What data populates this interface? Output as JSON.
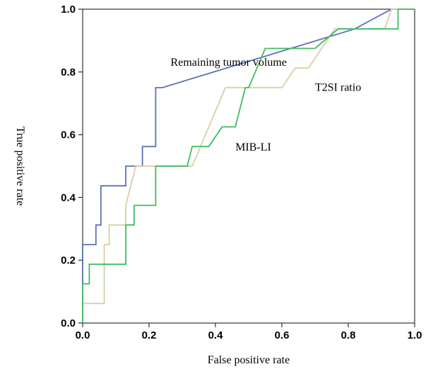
{
  "chart_data": {
    "type": "line",
    "title": "",
    "xlabel": "False positive rate",
    "ylabel": "True positive rate",
    "xlim": [
      0.0,
      1.0
    ],
    "ylim": [
      0.0,
      1.0
    ],
    "xticks": [
      "0.0",
      "0.2",
      "0.4",
      "0.6",
      "0.8",
      "1.0"
    ],
    "yticks": [
      "0.0",
      "0.2",
      "0.4",
      "0.6",
      "0.8",
      "1.0"
    ],
    "grid": false,
    "legend": "none",
    "series": [
      {
        "name": "Remaining tumor volume",
        "color": "#5a70b8",
        "points": [
          [
            0.0,
            0.0
          ],
          [
            0.0,
            0.25
          ],
          [
            0.04,
            0.25
          ],
          [
            0.04,
            0.3125
          ],
          [
            0.055,
            0.3125
          ],
          [
            0.055,
            0.4375
          ],
          [
            0.13,
            0.4375
          ],
          [
            0.13,
            0.5
          ],
          [
            0.18,
            0.5
          ],
          [
            0.18,
            0.5625
          ],
          [
            0.22,
            0.5625
          ],
          [
            0.22,
            0.75
          ],
          [
            0.24,
            0.75
          ],
          [
            0.82,
            0.9375
          ],
          [
            0.93,
            1.0
          ],
          [
            1.0,
            1.0
          ]
        ]
      },
      {
        "name": "T2SI ratio",
        "color": "#d8cfa2",
        "points": [
          [
            0.0,
            0.0
          ],
          [
            0.0,
            0.0625
          ],
          [
            0.065,
            0.0625
          ],
          [
            0.065,
            0.25
          ],
          [
            0.08,
            0.25
          ],
          [
            0.08,
            0.3125
          ],
          [
            0.13,
            0.3125
          ],
          [
            0.13,
            0.375
          ],
          [
            0.16,
            0.5
          ],
          [
            0.33,
            0.5
          ],
          [
            0.38,
            0.625
          ],
          [
            0.43,
            0.75
          ],
          [
            0.6,
            0.75
          ],
          [
            0.64,
            0.8125
          ],
          [
            0.68,
            0.8125
          ],
          [
            0.72,
            0.875
          ],
          [
            0.76,
            0.9375
          ],
          [
            0.91,
            0.9375
          ],
          [
            0.93,
            1.0
          ],
          [
            1.0,
            1.0
          ]
        ]
      },
      {
        "name": "MIB-LI",
        "color": "#3ebd5e",
        "points": [
          [
            0.0,
            0.0
          ],
          [
            0.0,
            0.125
          ],
          [
            0.02,
            0.125
          ],
          [
            0.02,
            0.1875
          ],
          [
            0.13,
            0.1875
          ],
          [
            0.13,
            0.3125
          ],
          [
            0.155,
            0.3125
          ],
          [
            0.155,
            0.375
          ],
          [
            0.22,
            0.375
          ],
          [
            0.22,
            0.5
          ],
          [
            0.315,
            0.5
          ],
          [
            0.33,
            0.5625
          ],
          [
            0.38,
            0.5625
          ],
          [
            0.42,
            0.625
          ],
          [
            0.46,
            0.625
          ],
          [
            0.49,
            0.75
          ],
          [
            0.5,
            0.75
          ],
          [
            0.55,
            0.875
          ],
          [
            0.7,
            0.875
          ],
          [
            0.77,
            0.9375
          ],
          [
            0.95,
            0.9375
          ],
          [
            0.95,
            1.0
          ],
          [
            1.0,
            1.0
          ]
        ]
      }
    ],
    "annotations": [
      {
        "text": "Remaining tumor volume",
        "x": 0.265,
        "y": 0.82
      },
      {
        "text": "T2SI ratio",
        "x": 0.7,
        "y": 0.74
      },
      {
        "text": "MIB-LI",
        "x": 0.46,
        "y": 0.55
      }
    ]
  }
}
